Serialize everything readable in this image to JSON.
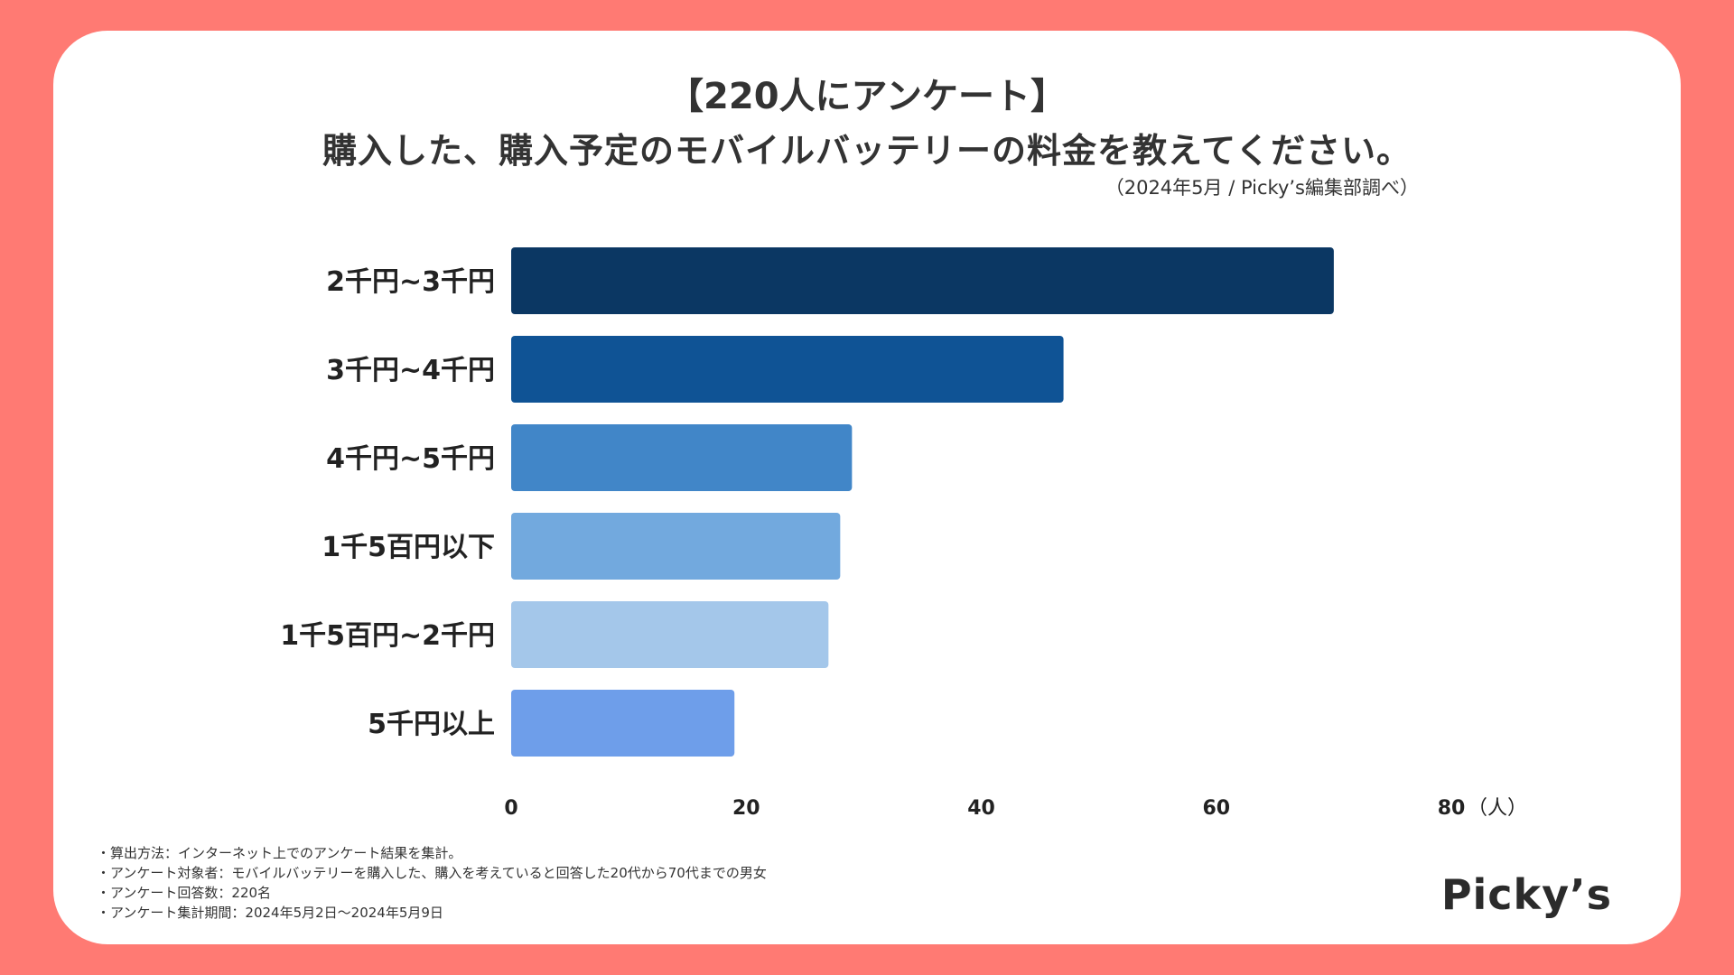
{
  "header": {
    "title_line1": "【220人にアンケート】",
    "title_line2": "購入した、購入予定のモバイルバッテリーの料金を教えてください。",
    "source": "（2024年5月 / Picky’s編集部調べ）"
  },
  "chart_data": {
    "type": "bar",
    "orientation": "horizontal",
    "categories": [
      "2千円~3千円",
      "3千円~4千円",
      "4千円~5千円",
      "1千5百円以下",
      "1千5百円~2千円",
      "5千円以上"
    ],
    "values": [
      70,
      47,
      29,
      28,
      27,
      19
    ],
    "colors": [
      "#0b3763",
      "#0f5395",
      "#4186c8",
      "#72a9de",
      "#a4c7ea",
      "#6e9eea"
    ],
    "x_ticks": [
      "0",
      "20",
      "40",
      "60",
      "80"
    ],
    "x_unit": "（人）",
    "xlim": [
      0,
      80
    ],
    "grid": false,
    "legend": "none"
  },
  "notes": [
    "・算出方法：インターネット上でのアンケート結果を集計。",
    "・アンケート対象者：モバイルバッテリーを購入した、購入を考えていると回答した20代から70代までの男女",
    "・アンケート回答数：220名",
    "・アンケート集計期間：2024年5月2日〜2024年5月9日"
  ],
  "brand": "Picky’s",
  "colors": {
    "background": "#ff7a73",
    "card": "#ffffff",
    "text": "#333333"
  }
}
